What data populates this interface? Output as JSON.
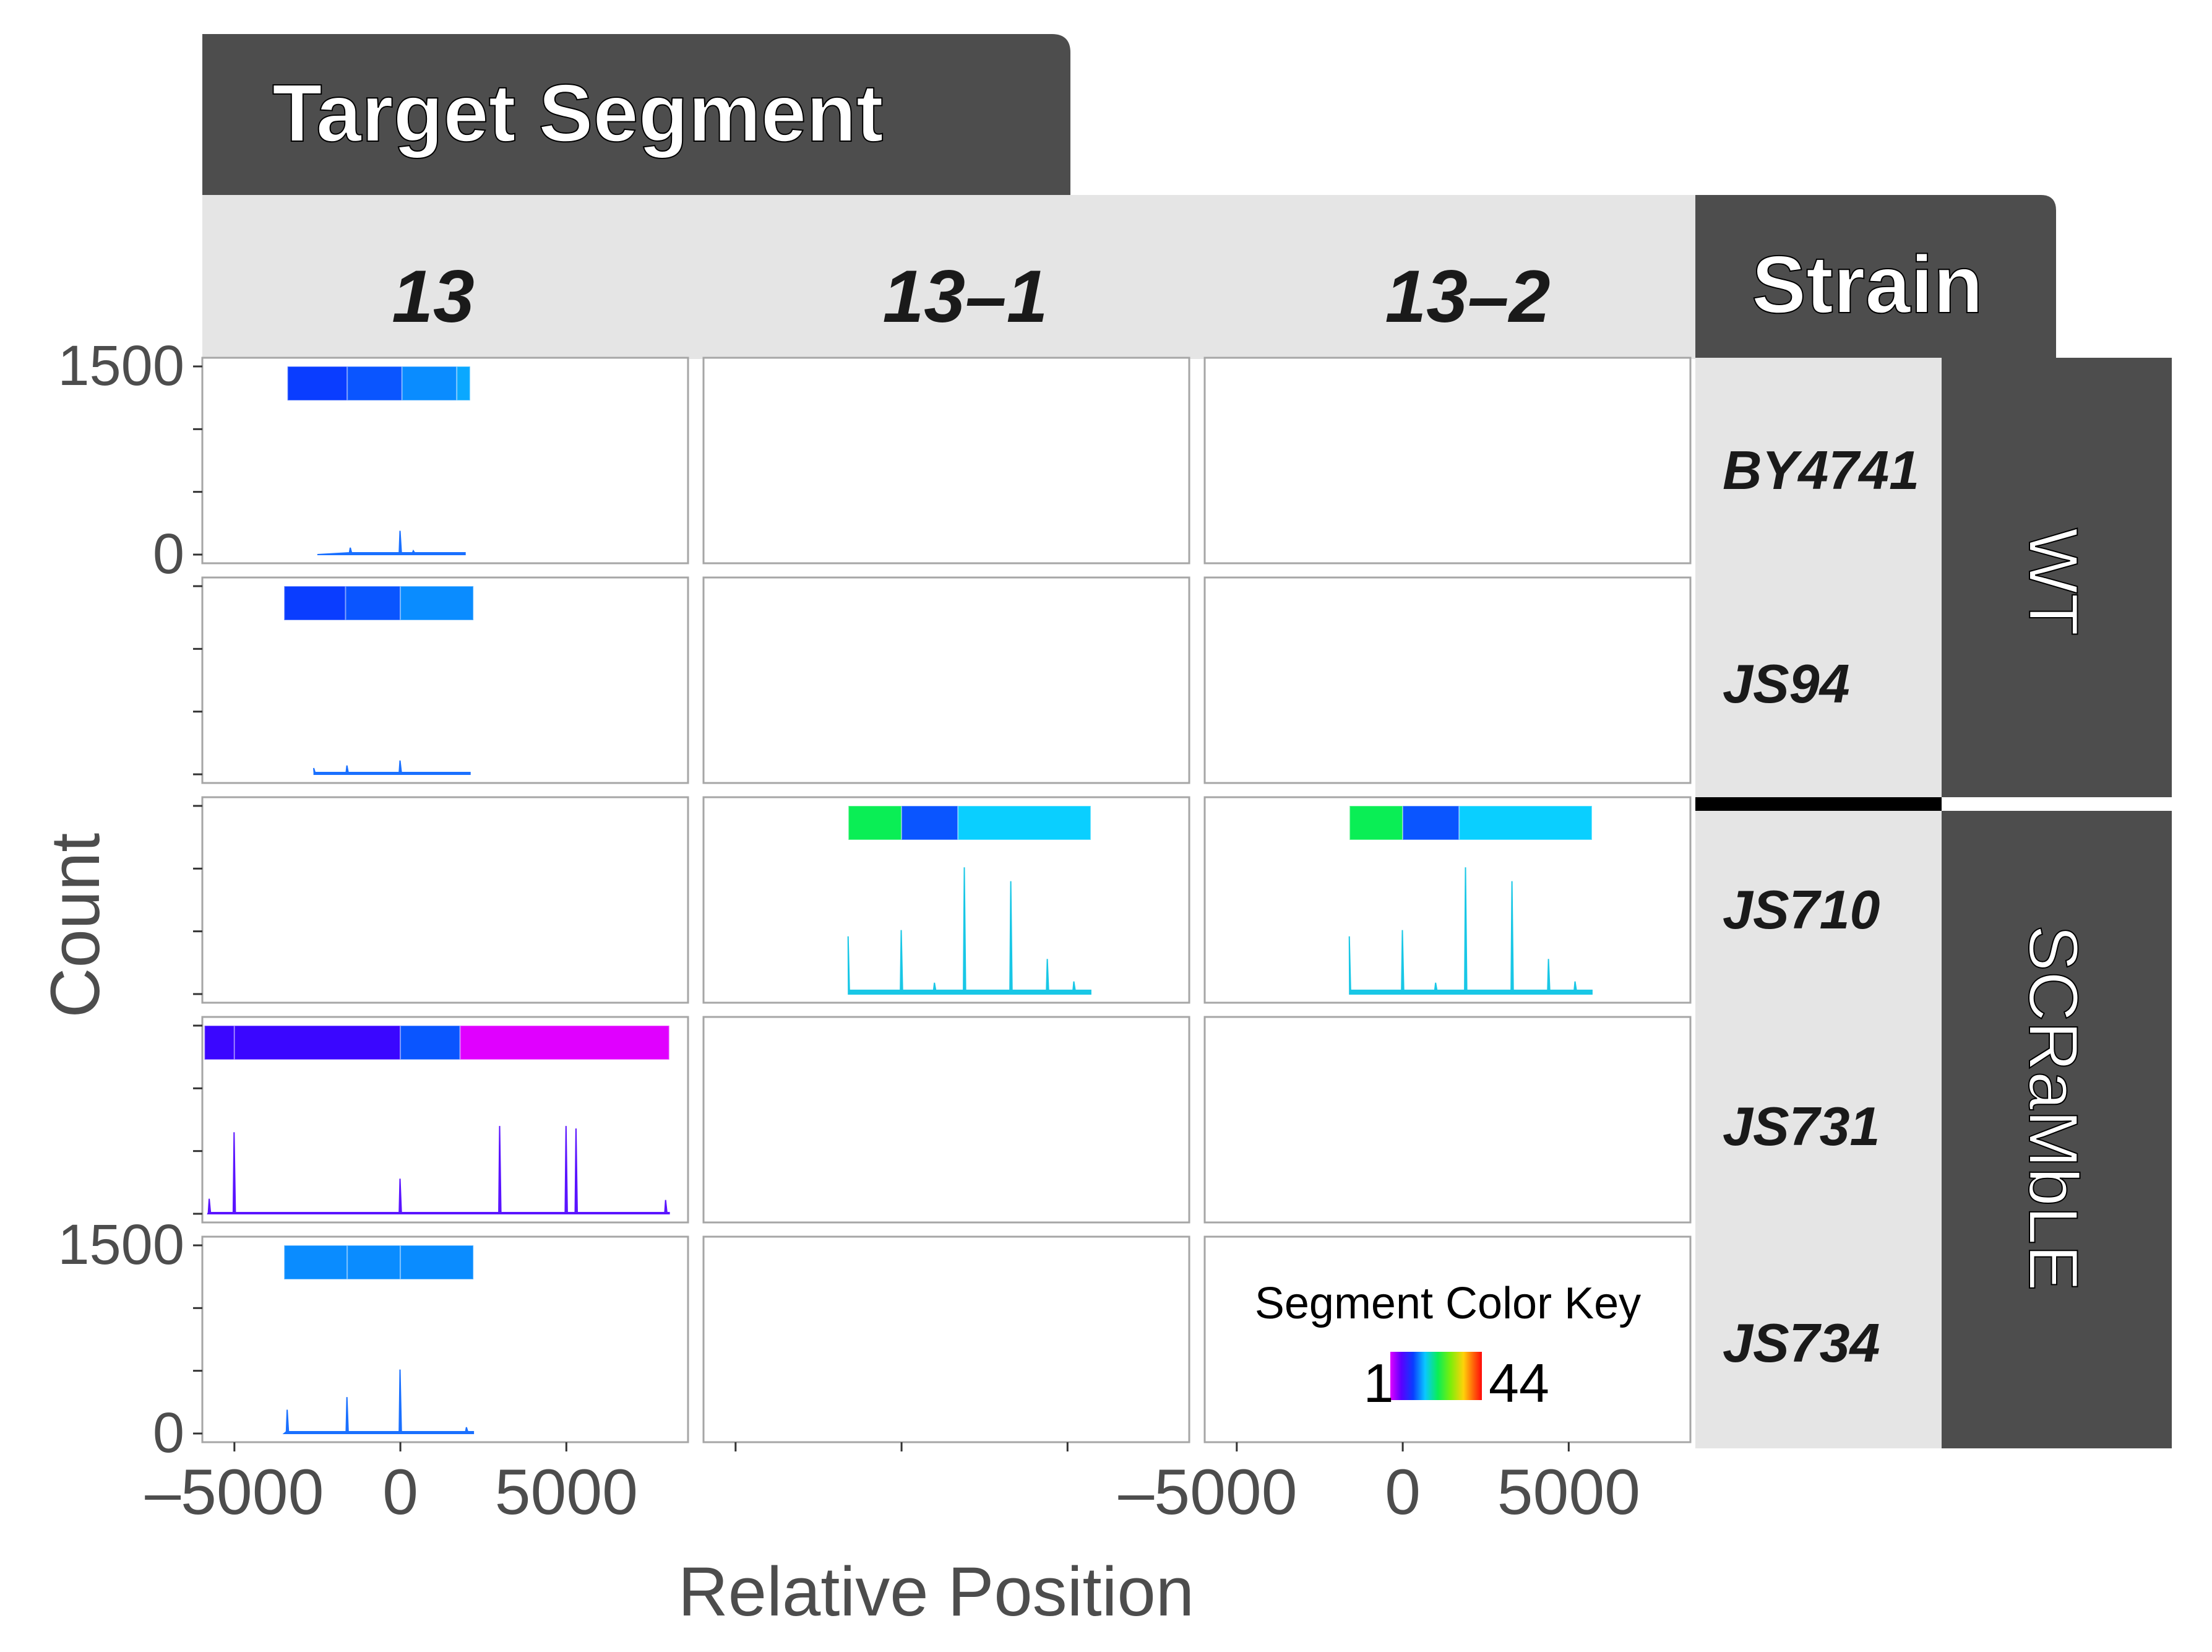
{
  "colors": {
    "strip_dark": "#4d4d4d",
    "strip_light": "#e5e5e5",
    "panel_border": "#a6a6a6",
    "axis_text": "#4d4d4d",
    "strip_text_dark": "#1a1a1a"
  },
  "chart_data": {
    "type": "area",
    "facet_title": "Target Segment",
    "group_title": "Strain",
    "xlabel": "Relative Position",
    "ylabel": "Count",
    "xlim": [
      -5500,
      8200
    ],
    "ylim": [
      0,
      1500
    ],
    "x_ticks": [
      -5000,
      0,
      5000
    ],
    "x_tick_labels": {
      "13": [
        "–5000",
        "0",
        "5000"
      ],
      "13-1": [
        "–5000"
      ],
      "13-2": [
        "0",
        "5000"
      ]
    },
    "y_tick_labels": [
      {
        "row": 0,
        "labels": [
          "1500",
          "0"
        ]
      },
      {
        "row": 4,
        "labels": [
          "1500",
          "0"
        ]
      }
    ],
    "columns": [
      "13",
      "13–1",
      "13–2"
    ],
    "rows": [
      "BY4741",
      "JS94",
      "JS710",
      "JS731",
      "JS734"
    ],
    "groups": [
      {
        "label": "WT",
        "rows": [
          "BY4741",
          "JS94"
        ]
      },
      {
        "label": "SCRaMbLE",
        "rows": [
          "JS710",
          "JS731",
          "JS734"
        ]
      }
    ],
    "legend": {
      "title": "Segment Color Key",
      "min_label": "1",
      "max_label": "44",
      "placement": "bottom-right panel"
    },
    "panels": [
      {
        "row": "BY4741",
        "column": "13",
        "segments": [
          {
            "x0": -3400,
            "x1": -1600,
            "color": "#0a3dff"
          },
          {
            "x0": -1600,
            "x1": 50,
            "color": "#0a55ff"
          },
          {
            "x0": 50,
            "x1": 1700,
            "color": "#0a8cff"
          },
          {
            "x0": 1700,
            "x1": 2100,
            "color": "#0aa8ff"
          }
        ],
        "signal": {
          "x_start": -2500,
          "x_end": 1950,
          "color": "#1a70ff",
          "baseline": 15,
          "peaks": [
            {
              "x": -1500,
              "y": 55
            },
            {
              "x": 0,
              "y": 190
            },
            {
              "x": 400,
              "y": 30
            }
          ]
        }
      },
      {
        "row": "JS94",
        "column": "13",
        "segments": [
          {
            "x0": -3500,
            "x1": -1650,
            "color": "#0a3dff"
          },
          {
            "x0": -1650,
            "x1": 0,
            "color": "#0a55ff"
          },
          {
            "x0": 0,
            "x1": 2200,
            "color": "#0a8cff"
          }
        ],
        "signal": {
          "x_start": -2600,
          "x_end": 2100,
          "color": "#1a70ff",
          "baseline": 15,
          "peaks": [
            {
              "x": -2600,
              "y": 50
            },
            {
              "x": -1600,
              "y": 70
            },
            {
              "x": 0,
              "y": 110
            }
          ]
        }
      },
      {
        "row": "JS710",
        "column": "13–1",
        "segments": [
          {
            "x0": -1600,
            "x1": 0,
            "color": "#0aee55"
          },
          {
            "x0": 0,
            "x1": 1700,
            "color": "#0a55ff"
          },
          {
            "x0": 1700,
            "x1": 5700,
            "color": "#0acfff"
          }
        ],
        "signal": {
          "x_start": -1600,
          "x_end": 5700,
          "color": "#19c7e6",
          "baseline": 30,
          "peaks": [
            {
              "x": -1600,
              "y": 460
            },
            {
              "x": 0,
              "y": 510
            },
            {
              "x": 1000,
              "y": 90
            },
            {
              "x": 1900,
              "y": 1010
            },
            {
              "x": 3300,
              "y": 900
            },
            {
              "x": 4400,
              "y": 280
            },
            {
              "x": 5200,
              "y": 100
            }
          ]
        }
      },
      {
        "row": "JS710",
        "column": "13–2",
        "segments": [
          {
            "x0": -1600,
            "x1": 0,
            "color": "#0aee55"
          },
          {
            "x0": 0,
            "x1": 1700,
            "color": "#0a55ff"
          },
          {
            "x0": 1700,
            "x1": 5700,
            "color": "#0acfff"
          }
        ],
        "signal": {
          "x_start": -1600,
          "x_end": 5700,
          "color": "#19c7e6",
          "baseline": 30,
          "peaks": [
            {
              "x": -1600,
              "y": 460
            },
            {
              "x": 0,
              "y": 510
            },
            {
              "x": 1000,
              "y": 90
            },
            {
              "x": 1900,
              "y": 1010
            },
            {
              "x": 3300,
              "y": 900
            },
            {
              "x": 4400,
              "y": 280
            },
            {
              "x": 5200,
              "y": 100
            }
          ]
        }
      },
      {
        "row": "JS731",
        "column": "13",
        "segments": [
          {
            "x0": -5900,
            "x1": -5000,
            "color": "#3a06ff"
          },
          {
            "x0": -5000,
            "x1": 0,
            "color": "#3a06ff"
          },
          {
            "x0": 0,
            "x1": 1800,
            "color": "#0a55ff"
          },
          {
            "x0": 1800,
            "x1": 8100,
            "color": "#e000ff"
          }
        ],
        "signal": {
          "x_start": -5800,
          "x_end": 8100,
          "color": "#5a14ff",
          "baseline": 10,
          "peaks": [
            {
              "x": -5750,
              "y": 120
            },
            {
              "x": -5000,
              "y": 650
            },
            {
              "x": 0,
              "y": 280
            },
            {
              "x": 3000,
              "y": 700
            },
            {
              "x": 5000,
              "y": 700
            },
            {
              "x": 5300,
              "y": 680
            },
            {
              "x": 8000,
              "y": 110
            }
          ]
        }
      },
      {
        "row": "JS734",
        "column": "13",
        "segments": [
          {
            "x0": -3500,
            "x1": -1600,
            "color": "#0a8cff"
          },
          {
            "x0": -1600,
            "x1": 0,
            "color": "#0a8cff"
          },
          {
            "x0": 0,
            "x1": 2200,
            "color": "#0a8cff"
          }
        ],
        "signal": {
          "x_start": -3500,
          "x_end": 2200,
          "color": "#1a70ff",
          "baseline": 15,
          "peaks": [
            {
              "x": -3400,
              "y": 190
            },
            {
              "x": -1600,
              "y": 290
            },
            {
              "x": 0,
              "y": 510
            },
            {
              "x": 2000,
              "y": 50
            }
          ]
        }
      }
    ]
  }
}
